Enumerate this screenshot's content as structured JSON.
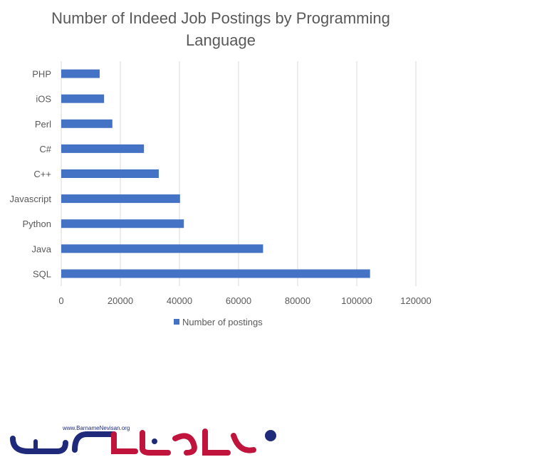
{
  "chart_data": {
    "type": "bar",
    "orientation": "horizontal",
    "title": "Number of Indeed Job Postings by Programming Language",
    "categories": [
      "PHP",
      "iOS",
      "Perl",
      "C#",
      "C++",
      "Javascript",
      "Python",
      "Java",
      "SQL"
    ],
    "series": [
      {
        "name": "Number of postings",
        "values": [
          13000,
          14500,
          17300,
          28000,
          33000,
          40200,
          41500,
          68300,
          104500
        ],
        "color": "#4472c4"
      }
    ],
    "xlim": [
      0,
      120000
    ],
    "xticks": [
      0,
      20000,
      40000,
      60000,
      80000,
      100000,
      120000
    ],
    "grid": "vertical",
    "legend_position": "bottom"
  },
  "watermark": {
    "text": "www.BarnameNevisan.org",
    "brand_color": "#c0143c",
    "accent_color": "#1f2a7a"
  }
}
